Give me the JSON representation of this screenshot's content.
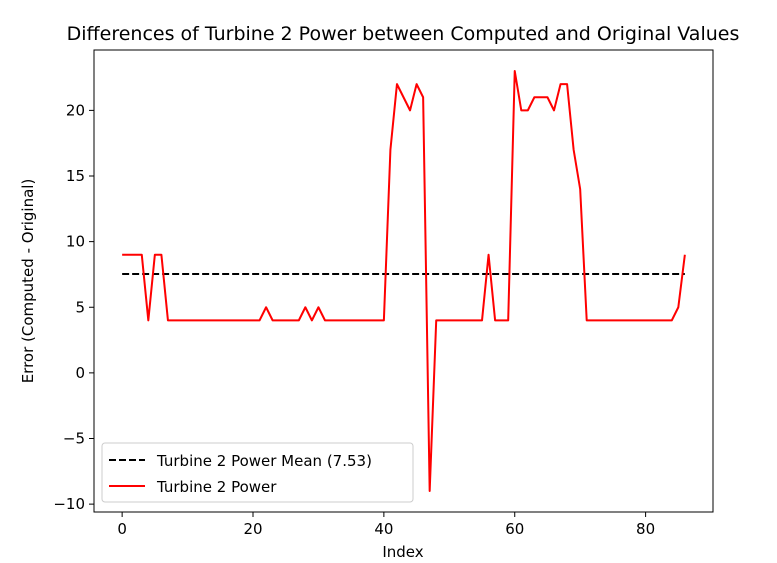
{
  "chart_data": {
    "type": "line",
    "title": "Differences of Turbine 2 Power between Computed and Original Values",
    "xlabel": "Index",
    "ylabel": "Error (Computed - Original)",
    "xlim": [
      -4.3,
      90.3
    ],
    "ylim": [
      -10.6,
      24.6
    ],
    "xticks": [
      0,
      20,
      40,
      60,
      80
    ],
    "yticks": [
      -10,
      -5,
      0,
      5,
      10,
      15,
      20
    ],
    "ytick_labels": [
      "−10",
      "−5",
      "0",
      "5",
      "10",
      "15",
      "20"
    ],
    "legend_position": "lower-left",
    "series": [
      {
        "name": "Turbine 2 Power Mean (7.53)",
        "style": "dashed",
        "color": "#000000",
        "x": [
          0,
          86
        ],
        "values": [
          7.53,
          7.53
        ]
      },
      {
        "name": "Turbine 2 Power",
        "style": "solid",
        "color": "#ff0000",
        "x": [
          0,
          1,
          2,
          3,
          4,
          5,
          6,
          7,
          8,
          9,
          10,
          11,
          12,
          13,
          14,
          15,
          16,
          17,
          18,
          19,
          20,
          21,
          22,
          23,
          24,
          25,
          26,
          27,
          28,
          29,
          30,
          31,
          32,
          33,
          34,
          35,
          36,
          37,
          38,
          39,
          40,
          41,
          42,
          43,
          44,
          45,
          46,
          47,
          48,
          49,
          50,
          51,
          52,
          53,
          54,
          55,
          56,
          57,
          58,
          59,
          60,
          61,
          62,
          63,
          64,
          65,
          66,
          67,
          68,
          69,
          70,
          71,
          72,
          73,
          74,
          75,
          76,
          77,
          78,
          79,
          80,
          81,
          82,
          83,
          84,
          85,
          86
        ],
        "values": [
          9,
          9,
          9,
          9,
          4,
          9,
          9,
          4,
          4,
          4,
          4,
          4,
          4,
          4,
          4,
          4,
          4,
          4,
          4,
          4,
          4,
          4,
          5,
          4,
          4,
          4,
          4,
          4,
          5,
          4,
          5,
          4,
          4,
          4,
          4,
          4,
          4,
          4,
          4,
          4,
          4,
          17,
          22,
          21,
          20,
          22,
          21,
          -9,
          4,
          4,
          4,
          4,
          4,
          4,
          4,
          4,
          9,
          4,
          4,
          4,
          23,
          20,
          20,
          21,
          21,
          21,
          20,
          22,
          22,
          17,
          14,
          4,
          4,
          4,
          4,
          4,
          4,
          4,
          4,
          4,
          4,
          4,
          4,
          4,
          4,
          5,
          9
        ]
      }
    ]
  }
}
